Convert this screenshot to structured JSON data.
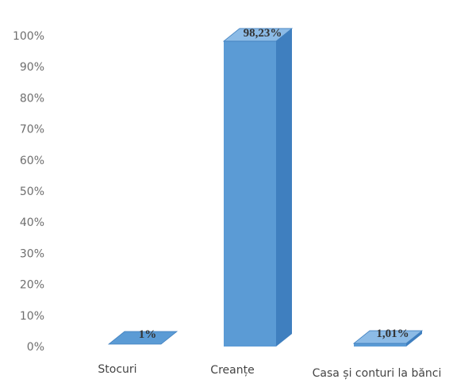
{
  "chart_data": {
    "type": "bar",
    "categories": [
      "Stocuri",
      "Creanțe",
      "Casa și conturi la bănci"
    ],
    "values": [
      0.76,
      98.23,
      1.01
    ],
    "data_labels": [
      "1%",
      "98,23%",
      "1,01%"
    ],
    "title": "",
    "xlabel": "",
    "ylabel": "",
    "ylim": [
      0,
      100
    ],
    "y_ticks": [
      "0%",
      "10%",
      "20%",
      "30%",
      "40%",
      "50%",
      "60%",
      "70%",
      "80%",
      "90%",
      "100%"
    ],
    "grid": false,
    "legend": "none",
    "bar_style": "3d",
    "colors": {
      "front": "#5b9bd5",
      "side": "#3f7fbf",
      "top": "#8cbbe6"
    }
  }
}
